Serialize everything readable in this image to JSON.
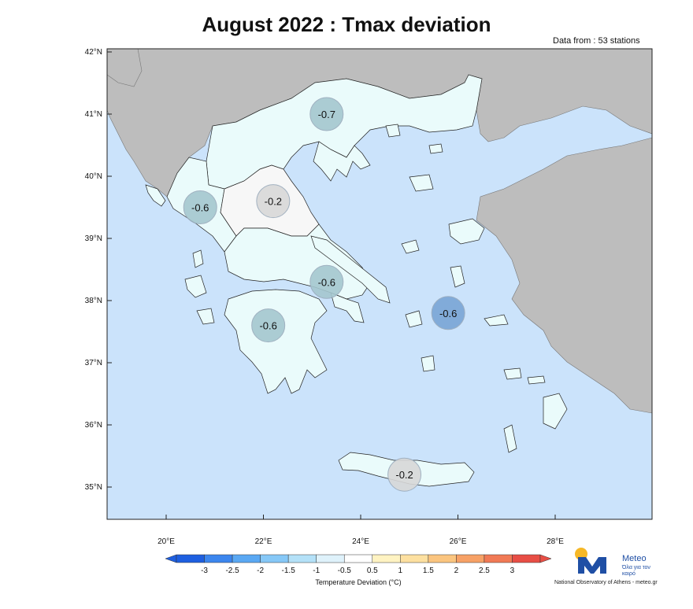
{
  "title": "August 2022 : Tmax deviation",
  "stations_note": "Data from : 53 stations",
  "colors": {
    "sea": "#cbe3fb",
    "neighbor_land": "#bdbdbd",
    "greece_land": "#eafbfb",
    "grey_circle": "#d8d8d8",
    "teal_circle": "#a5c7cf",
    "blue_circle": "#7aa6d6"
  },
  "axes": {
    "lat_labels": [
      "42°N",
      "41°N",
      "40°N",
      "39°N",
      "38°N",
      "37°N",
      "36°N",
      "35°N"
    ],
    "lon_labels": [
      "20°E",
      "22°E",
      "24°E",
      "26°E",
      "28°E"
    ]
  },
  "regions": [
    {
      "label": "-0.7",
      "value": -0.7,
      "color_key": "teal_circle",
      "lon": 23.3,
      "lat": 41.0
    },
    {
      "label": "-0.6",
      "value": -0.6,
      "color_key": "teal_circle",
      "lon": 20.7,
      "lat": 39.5
    },
    {
      "label": "-0.2",
      "value": -0.2,
      "color_key": "grey_circle",
      "lon": 22.2,
      "lat": 39.6
    },
    {
      "label": "-0.6",
      "value": -0.6,
      "color_key": "teal_circle",
      "lon": 23.3,
      "lat": 38.3
    },
    {
      "label": "-0.6",
      "value": -0.6,
      "color_key": "teal_circle",
      "lon": 22.1,
      "lat": 37.6
    },
    {
      "label": "-0.6",
      "value": -0.6,
      "color_key": "blue_circle",
      "lon": 25.8,
      "lat": 37.8
    },
    {
      "label": "-0.2",
      "value": -0.2,
      "color_key": "grey_circle",
      "lon": 24.9,
      "lat": 35.2
    }
  ],
  "colorbar": {
    "ticks": [
      "-3",
      "-2.5",
      "-2",
      "-1.5",
      "-1",
      "-0.5",
      "0.5",
      "1",
      "1.5",
      "2",
      "2.5",
      "3"
    ],
    "colors": [
      "#1e5fe0",
      "#3c86ee",
      "#5aa8f3",
      "#86c8f7",
      "#b4e1f8",
      "#dff2fb",
      "#ffffff",
      "#fff3c2",
      "#fde0a0",
      "#fbc57f",
      "#f7a166",
      "#f17a55",
      "#e84e45"
    ],
    "title": "Temperature Deviation (°C)"
  },
  "logo": {
    "name": "Meteo",
    "tagline": "Όλα για τον καιρό",
    "org": "National Observatory of Athens - meteo.gr"
  }
}
